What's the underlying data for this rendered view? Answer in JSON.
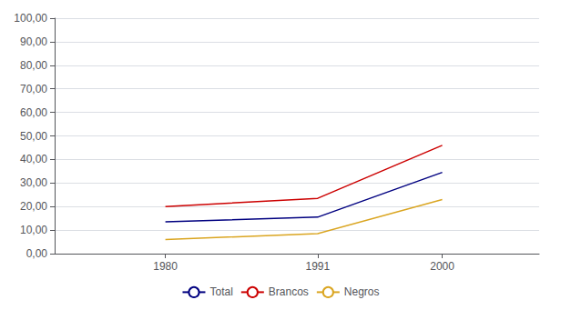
{
  "chart_data": {
    "type": "line",
    "x": [
      1980,
      1991,
      2000
    ],
    "series": [
      {
        "name": "Total",
        "color": "#000080",
        "values": [
          13.5,
          15.5,
          34.5
        ]
      },
      {
        "name": "Brancos",
        "color": "#CC0000",
        "values": [
          20.0,
          23.5,
          46.0
        ]
      },
      {
        "name": "Negros",
        "color": "#DAA520",
        "values": [
          6.0,
          8.5,
          23.0
        ]
      }
    ],
    "xlim": [
      1972,
      2007
    ],
    "xticks": [
      1980,
      1991,
      2000
    ],
    "ylim": [
      0,
      100
    ],
    "yticks": [
      {
        "value": 0,
        "label": "0,00"
      },
      {
        "value": 10,
        "label": "10,00"
      },
      {
        "value": 20,
        "label": "20,00"
      },
      {
        "value": 30,
        "label": "30,00"
      },
      {
        "value": 40,
        "label": "40,00"
      },
      {
        "value": 50,
        "label": "50,00"
      },
      {
        "value": 60,
        "label": "60,00"
      },
      {
        "value": 70,
        "label": "70,00"
      },
      {
        "value": 80,
        "label": "80,00"
      },
      {
        "value": 90,
        "label": "90,00"
      },
      {
        "value": 100,
        "label": "100,00"
      }
    ],
    "grid": true,
    "legend": "bottom"
  }
}
